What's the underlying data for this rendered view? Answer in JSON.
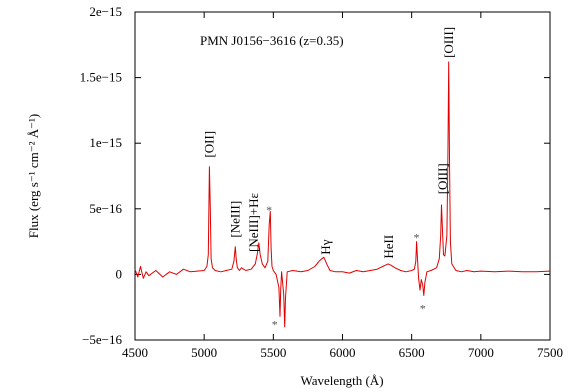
{
  "chart_data": {
    "type": "line",
    "title": "PMN J0156−3616  (z=0.35)",
    "xlabel": "Wavelength (Å)",
    "ylabel": "Flux (erg s⁻¹ cm⁻² Å⁻¹)",
    "xlim": [
      4500,
      7500
    ],
    "ylim": [
      -5e-16,
      2e-15
    ],
    "xticks": [
      4500,
      5000,
      5500,
      6000,
      6500,
      7000,
      7500
    ],
    "xtick_labels": [
      "4500",
      "5000",
      "5500",
      "6000",
      "6500",
      "7000",
      "7500"
    ],
    "yticks": [
      -5e-16,
      0,
      5e-16,
      1e-15,
      1.5e-15,
      2e-15
    ],
    "ytick_labels": [
      "−5e−16",
      "0",
      "5e−16",
      "1e−15",
      "1.5e−15",
      "2e−15"
    ],
    "grid": false,
    "series": [
      {
        "color": "#e00000",
        "x": [
          4500,
          4520,
          4540,
          4560,
          4580,
          4600,
          4650,
          4700,
          4750,
          4800,
          4850,
          4900,
          4950,
          5000,
          5020,
          5030,
          5038,
          5044,
          5050,
          5060,
          5080,
          5120,
          5160,
          5200,
          5215,
          5225,
          5232,
          5240,
          5255,
          5270,
          5300,
          5340,
          5370,
          5385,
          5395,
          5405,
          5420,
          5440,
          5460,
          5470,
          5478,
          5484,
          5490,
          5500,
          5520,
          5540,
          5548,
          5553,
          5560,
          5575,
          5582,
          5588,
          5600,
          5640,
          5700,
          5750,
          5800,
          5830,
          5850,
          5865,
          5878,
          5890,
          5910,
          5950,
          6000,
          6050,
          6100,
          6150,
          6200,
          6250,
          6290,
          6310,
          6330,
          6350,
          6380,
          6420,
          6460,
          6500,
          6520,
          6530,
          6536,
          6542,
          6550,
          6560,
          6570,
          6580,
          6588,
          6596,
          6610,
          6640,
          6680,
          6700,
          6710,
          6716,
          6722,
          6730,
          6740,
          6755,
          6762,
          6768,
          6774,
          6780,
          6790,
          6820,
          6860,
          6900,
          6950,
          7000,
          7100,
          7200,
          7300,
          7400,
          7500
        ],
        "y": [
          4e-17,
          -2e-17,
          6e-17,
          -3e-17,
          2e-17,
          -1e-17,
          3e-17,
          -2e-17,
          2e-17,
          0,
          4e-17,
          2e-17,
          2.5e-17,
          3e-17,
          6e-17,
          1.5e-16,
          8.2e-16,
          5e-16,
          1.2e-16,
          5e-17,
          3e-17,
          2e-17,
          3e-17,
          4e-17,
          1e-16,
          2.1e-16,
          1.1e-16,
          5e-17,
          3e-17,
          5e-17,
          3e-17,
          4e-17,
          8e-17,
          1.6e-16,
          2.4e-16,
          1.5e-16,
          8e-17,
          5e-17,
          1e-16,
          3.8e-16,
          4.8e-16,
          2e-16,
          6e-17,
          3e-17,
          0,
          -1e-16,
          -3.2e-16,
          -1.2e-16,
          2e-17,
          -1.5e-16,
          -4e-16,
          -1.8e-16,
          2e-17,
          3e-17,
          2e-17,
          3e-17,
          6e-17,
          1e-16,
          1.2e-16,
          1.3e-16,
          1e-16,
          7e-17,
          3e-17,
          2e-17,
          2e-17,
          1e-17,
          3e-17,
          2e-17,
          3e-17,
          4e-17,
          6e-17,
          7e-17,
          8e-17,
          7e-17,
          5e-17,
          3e-17,
          2e-17,
          3e-17,
          4e-17,
          1e-16,
          2.5e-16,
          1.2e-16,
          -3e-17,
          -1.2e-16,
          -4e-17,
          -8e-17,
          -1.6e-16,
          -6e-17,
          2e-17,
          3e-17,
          5e-17,
          1.2e-16,
          3e-16,
          5.3e-16,
          3.5e-16,
          1.5e-16,
          1.4e-16,
          3e-16,
          9e-16,
          1.62e-15,
          8e-16,
          2.5e-16,
          8e-17,
          3e-17,
          2e-17,
          3e-17,
          2e-17,
          2.5e-17,
          2e-17,
          2.5e-17,
          2e-17,
          2e-17,
          2.5e-17
        ]
      }
    ],
    "annotations": [
      {
        "text": "[OII]",
        "x": 5038,
        "y": 8.6e-16,
        "rotate": -90
      },
      {
        "text": "[NeIII]",
        "x": 5225,
        "y": 2.5e-16,
        "rotate": -90
      },
      {
        "text": "[NeIII]+Hε",
        "x": 5360,
        "y": 1.4e-16,
        "rotate": -90
      },
      {
        "text": "Hγ",
        "x": 5880,
        "y": 1.2e-16,
        "rotate": -90
      },
      {
        "text": "HeII",
        "x": 6335,
        "y": 9e-17,
        "rotate": -90
      },
      {
        "text": "[OIII]",
        "x": 6725,
        "y": 5.8e-16,
        "rotate": -90
      },
      {
        "text": "[OIII]",
        "x": 6770,
        "y": 1.62e-15,
        "rotate": -90
      }
    ],
    "markers": [
      {
        "text": "*",
        "x": 5470,
        "y": 4.9e-16
      },
      {
        "text": "*",
        "x": 5510,
        "y": -3.8e-16
      },
      {
        "text": "*",
        "x": 6535,
        "y": 2.8e-16
      },
      {
        "text": "*",
        "x": 6580,
        "y": -2.6e-16
      }
    ]
  }
}
